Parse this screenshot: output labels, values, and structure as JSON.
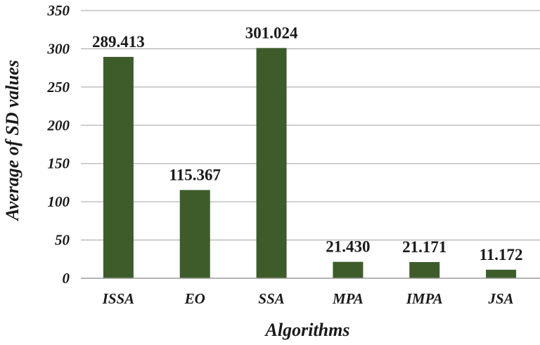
{
  "chart_data": {
    "type": "bar",
    "categories": [
      "ISSA",
      "EO",
      "SSA",
      "MPA",
      "IMPA",
      "JSA"
    ],
    "values": [
      289.413,
      115.367,
      301.024,
      21.43,
      21.171,
      11.172
    ],
    "data_labels": [
      "289.413",
      "115.367",
      "301.024",
      "21.430",
      "21.171",
      "11.172"
    ],
    "xlabel": "Algorithms",
    "ylabel": "Average of SD values",
    "ylim": [
      0,
      350
    ],
    "yticks": [
      0,
      50,
      100,
      150,
      200,
      250,
      300,
      350
    ],
    "grid": "horizontal",
    "legend": "none",
    "bar_color": "#3d5c2a",
    "grid_color": "#b5b5b5"
  }
}
